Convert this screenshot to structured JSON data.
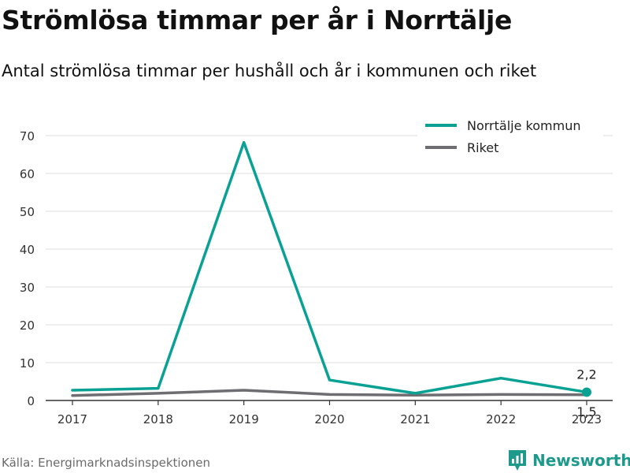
{
  "title": "Strömlösa timmar per år i Norrtälje",
  "subtitle": "Antal strömlösa timmar per hushåll och år i kommunen och riket",
  "source": "Källa: Energimarknadsinspektionen",
  "brand": "Newsworthy",
  "brand_icon": "newsworthy-logo-icon",
  "colors": {
    "norrtalje": "#0aa195",
    "riket": "#6e6e72",
    "grid": "#dedede",
    "axis": "#333333",
    "brand": "#1d9a8c"
  },
  "chart_data": {
    "type": "line",
    "title": "Strömlösa timmar per år i Norrtälje",
    "subtitle": "Antal strömlösa timmar per hushåll och år i kommunen och riket",
    "x": [
      "2017",
      "2018",
      "2019",
      "2020",
      "2021",
      "2022",
      "2023"
    ],
    "series": [
      {
        "name": "Norrtälje kommun",
        "values": [
          2.7,
          3.2,
          68.2,
          5.4,
          1.9,
          5.9,
          2.2
        ]
      },
      {
        "name": "Riket",
        "values": [
          1.3,
          1.9,
          2.7,
          1.6,
          1.4,
          1.6,
          1.5
        ]
      }
    ],
    "ylim": [
      0,
      70
    ],
    "yticks": [
      0,
      10,
      20,
      30,
      40,
      50,
      60,
      70
    ],
    "xlabel": "",
    "ylabel": "",
    "grid": true,
    "legend": "top-right",
    "annotations": [
      {
        "series": "Norrtälje kommun",
        "x": "2023",
        "label": "2,2",
        "position": "above"
      },
      {
        "series": "Riket",
        "x": "2023",
        "label": "1,5",
        "position": "below"
      }
    ]
  }
}
